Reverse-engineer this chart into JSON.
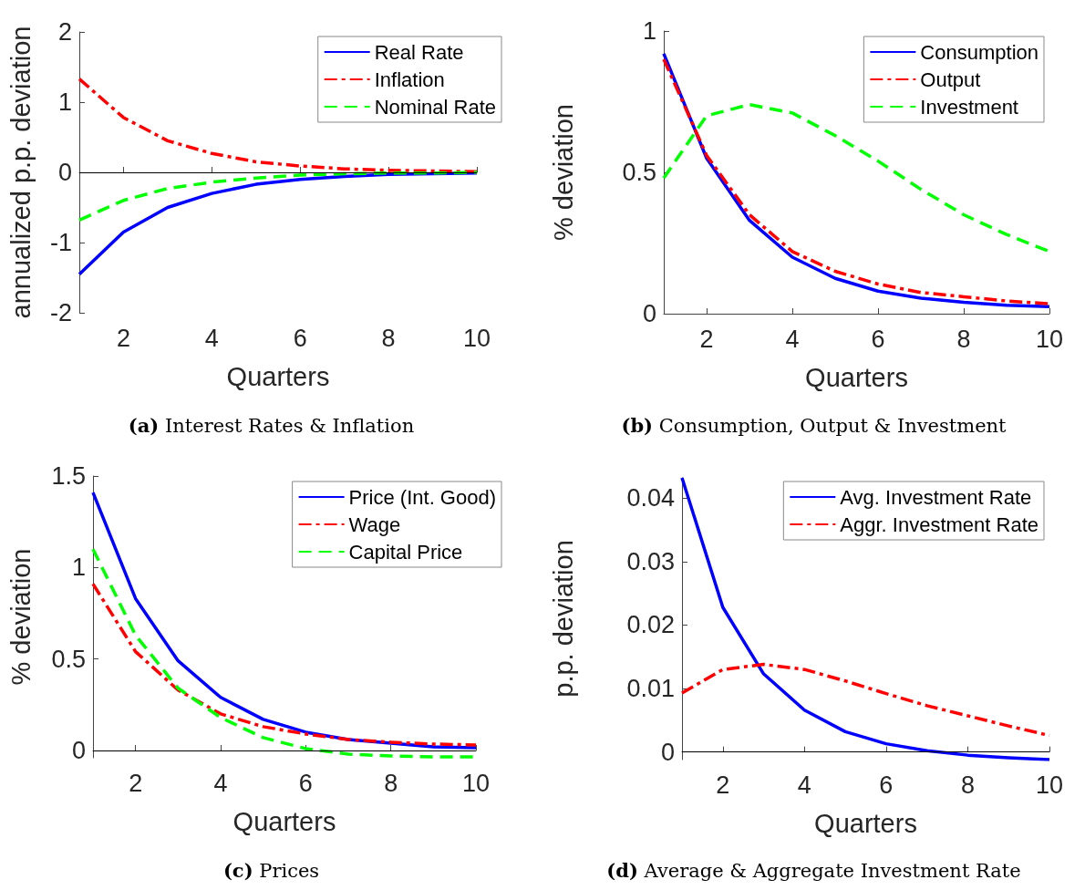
{
  "chart_data": [
    {
      "type": "line",
      "title": "(a) Interest Rates & Inflation",
      "xlabel": "Quarters",
      "ylabel": "annualized p.p. deviation",
      "x": [
        1,
        2,
        3,
        4,
        5,
        6,
        7,
        8,
        9,
        10
      ],
      "xlim": [
        1,
        10
      ],
      "xticks": [
        2,
        4,
        6,
        8,
        10
      ],
      "ylim": [
        -2,
        2
      ],
      "yticks": [
        -2,
        -1,
        0,
        1,
        2
      ],
      "grid": false,
      "legend": "top right",
      "marker": "none",
      "ref_lines": [
        {
          "axis": "y",
          "value": 0,
          "color": "#000000"
        }
      ],
      "series": [
        {
          "name": "Real Rate",
          "color": "#0000ff",
          "line_style": "solid",
          "values": [
            -1.45,
            -0.85,
            -0.5,
            -0.3,
            -0.17,
            -0.1,
            -0.06,
            -0.03,
            -0.02,
            -0.01
          ]
        },
        {
          "name": "Inflation",
          "color": "#ff0000",
          "line_style": "dashdot",
          "values": [
            1.33,
            0.78,
            0.45,
            0.27,
            0.15,
            0.09,
            0.05,
            0.03,
            0.02,
            0.01
          ]
        },
        {
          "name": "Nominal Rate",
          "color": "#00ff00",
          "line_style": "dashed",
          "values": [
            -0.68,
            -0.4,
            -0.23,
            -0.14,
            -0.08,
            -0.04,
            -0.02,
            -0.01,
            -0.01,
            0
          ]
        }
      ]
    },
    {
      "type": "line",
      "title": "(b) Consumption, Output & Investment",
      "xlabel": "Quarters",
      "ylabel": "% deviation",
      "x": [
        1,
        2,
        3,
        4,
        5,
        6,
        7,
        8,
        9,
        10
      ],
      "xlim": [
        1,
        10
      ],
      "xticks": [
        2,
        4,
        6,
        8,
        10
      ],
      "ylim": [
        0,
        1
      ],
      "yticks": [
        0,
        0.5,
        1
      ],
      "grid": false,
      "legend": "top right",
      "marker": "none",
      "series": [
        {
          "name": "Consumption",
          "color": "#0000ff",
          "line_style": "solid",
          "values": [
            0.92,
            0.55,
            0.33,
            0.2,
            0.125,
            0.08,
            0.055,
            0.04,
            0.03,
            0.025
          ]
        },
        {
          "name": "Output",
          "color": "#ff0000",
          "line_style": "dashdot",
          "values": [
            0.9,
            0.56,
            0.35,
            0.22,
            0.15,
            0.105,
            0.075,
            0.06,
            0.045,
            0.035
          ]
        },
        {
          "name": "Investment",
          "color": "#00ff00",
          "line_style": "dashed",
          "values": [
            0.48,
            0.7,
            0.74,
            0.71,
            0.63,
            0.54,
            0.44,
            0.35,
            0.28,
            0.22
          ]
        }
      ]
    },
    {
      "type": "line",
      "title": "(c) Prices",
      "xlabel": "Quarters",
      "ylabel": "% deviation",
      "x": [
        1,
        2,
        3,
        4,
        5,
        6,
        7,
        8,
        9,
        10
      ],
      "xlim": [
        1,
        10
      ],
      "xticks": [
        2,
        4,
        6,
        8,
        10
      ],
      "ylim": [
        -0.04,
        1.5
      ],
      "yticks": [
        0,
        0.5,
        1,
        1.5
      ],
      "grid": false,
      "legend": "top right",
      "marker": "none",
      "ref_lines": [
        {
          "axis": "y",
          "value": 0,
          "color": "#000000"
        }
      ],
      "series": [
        {
          "name": "Price (Int. Good)",
          "color": "#0000ff",
          "line_style": "solid",
          "values": [
            1.41,
            0.83,
            0.49,
            0.29,
            0.17,
            0.1,
            0.06,
            0.04,
            0.02,
            0.015
          ]
        },
        {
          "name": "Wage",
          "color": "#ff0000",
          "line_style": "dashdot",
          "values": [
            0.91,
            0.54,
            0.33,
            0.2,
            0.13,
            0.09,
            0.06,
            0.045,
            0.035,
            0.03
          ]
        },
        {
          "name": "Capital Price",
          "color": "#00ff00",
          "line_style": "dashed",
          "values": [
            1.1,
            0.63,
            0.34,
            0.18,
            0.07,
            0.01,
            -0.02,
            -0.03,
            -0.035,
            -0.035
          ]
        }
      ]
    },
    {
      "type": "line",
      "title": "(d) Average & Aggregate Investment Rate",
      "xlabel": "Quarters",
      "ylabel": "p.p. deviation",
      "x": [
        1,
        2,
        3,
        4,
        5,
        6,
        7,
        8,
        9,
        10
      ],
      "xlim": [
        1,
        10
      ],
      "xticks": [
        2,
        4,
        6,
        8,
        10
      ],
      "ylim": [
        -0.0012,
        0.0432
      ],
      "yticks": [
        0,
        0.01,
        0.02,
        0.03,
        0.04
      ],
      "grid": false,
      "legend": "top right",
      "marker": "none",
      "ref_lines": [
        {
          "axis": "y",
          "value": 0,
          "color": "#000000"
        }
      ],
      "series": [
        {
          "name": "Avg. Investment Rate",
          "color": "#0000ff",
          "line_style": "solid",
          "values": [
            0.0432,
            0.0228,
            0.0123,
            0.0066,
            0.0032,
            0.0013,
            0.0002,
            -0.0005,
            -0.0009,
            -0.0012
          ]
        },
        {
          "name": "Aggr. Investment Rate",
          "color": "#ff0000",
          "line_style": "dashdot",
          "values": [
            0.0093,
            0.013,
            0.0138,
            0.013,
            0.0112,
            0.0092,
            0.0073,
            0.0057,
            0.0041,
            0.0026
          ]
        }
      ]
    }
  ]
}
